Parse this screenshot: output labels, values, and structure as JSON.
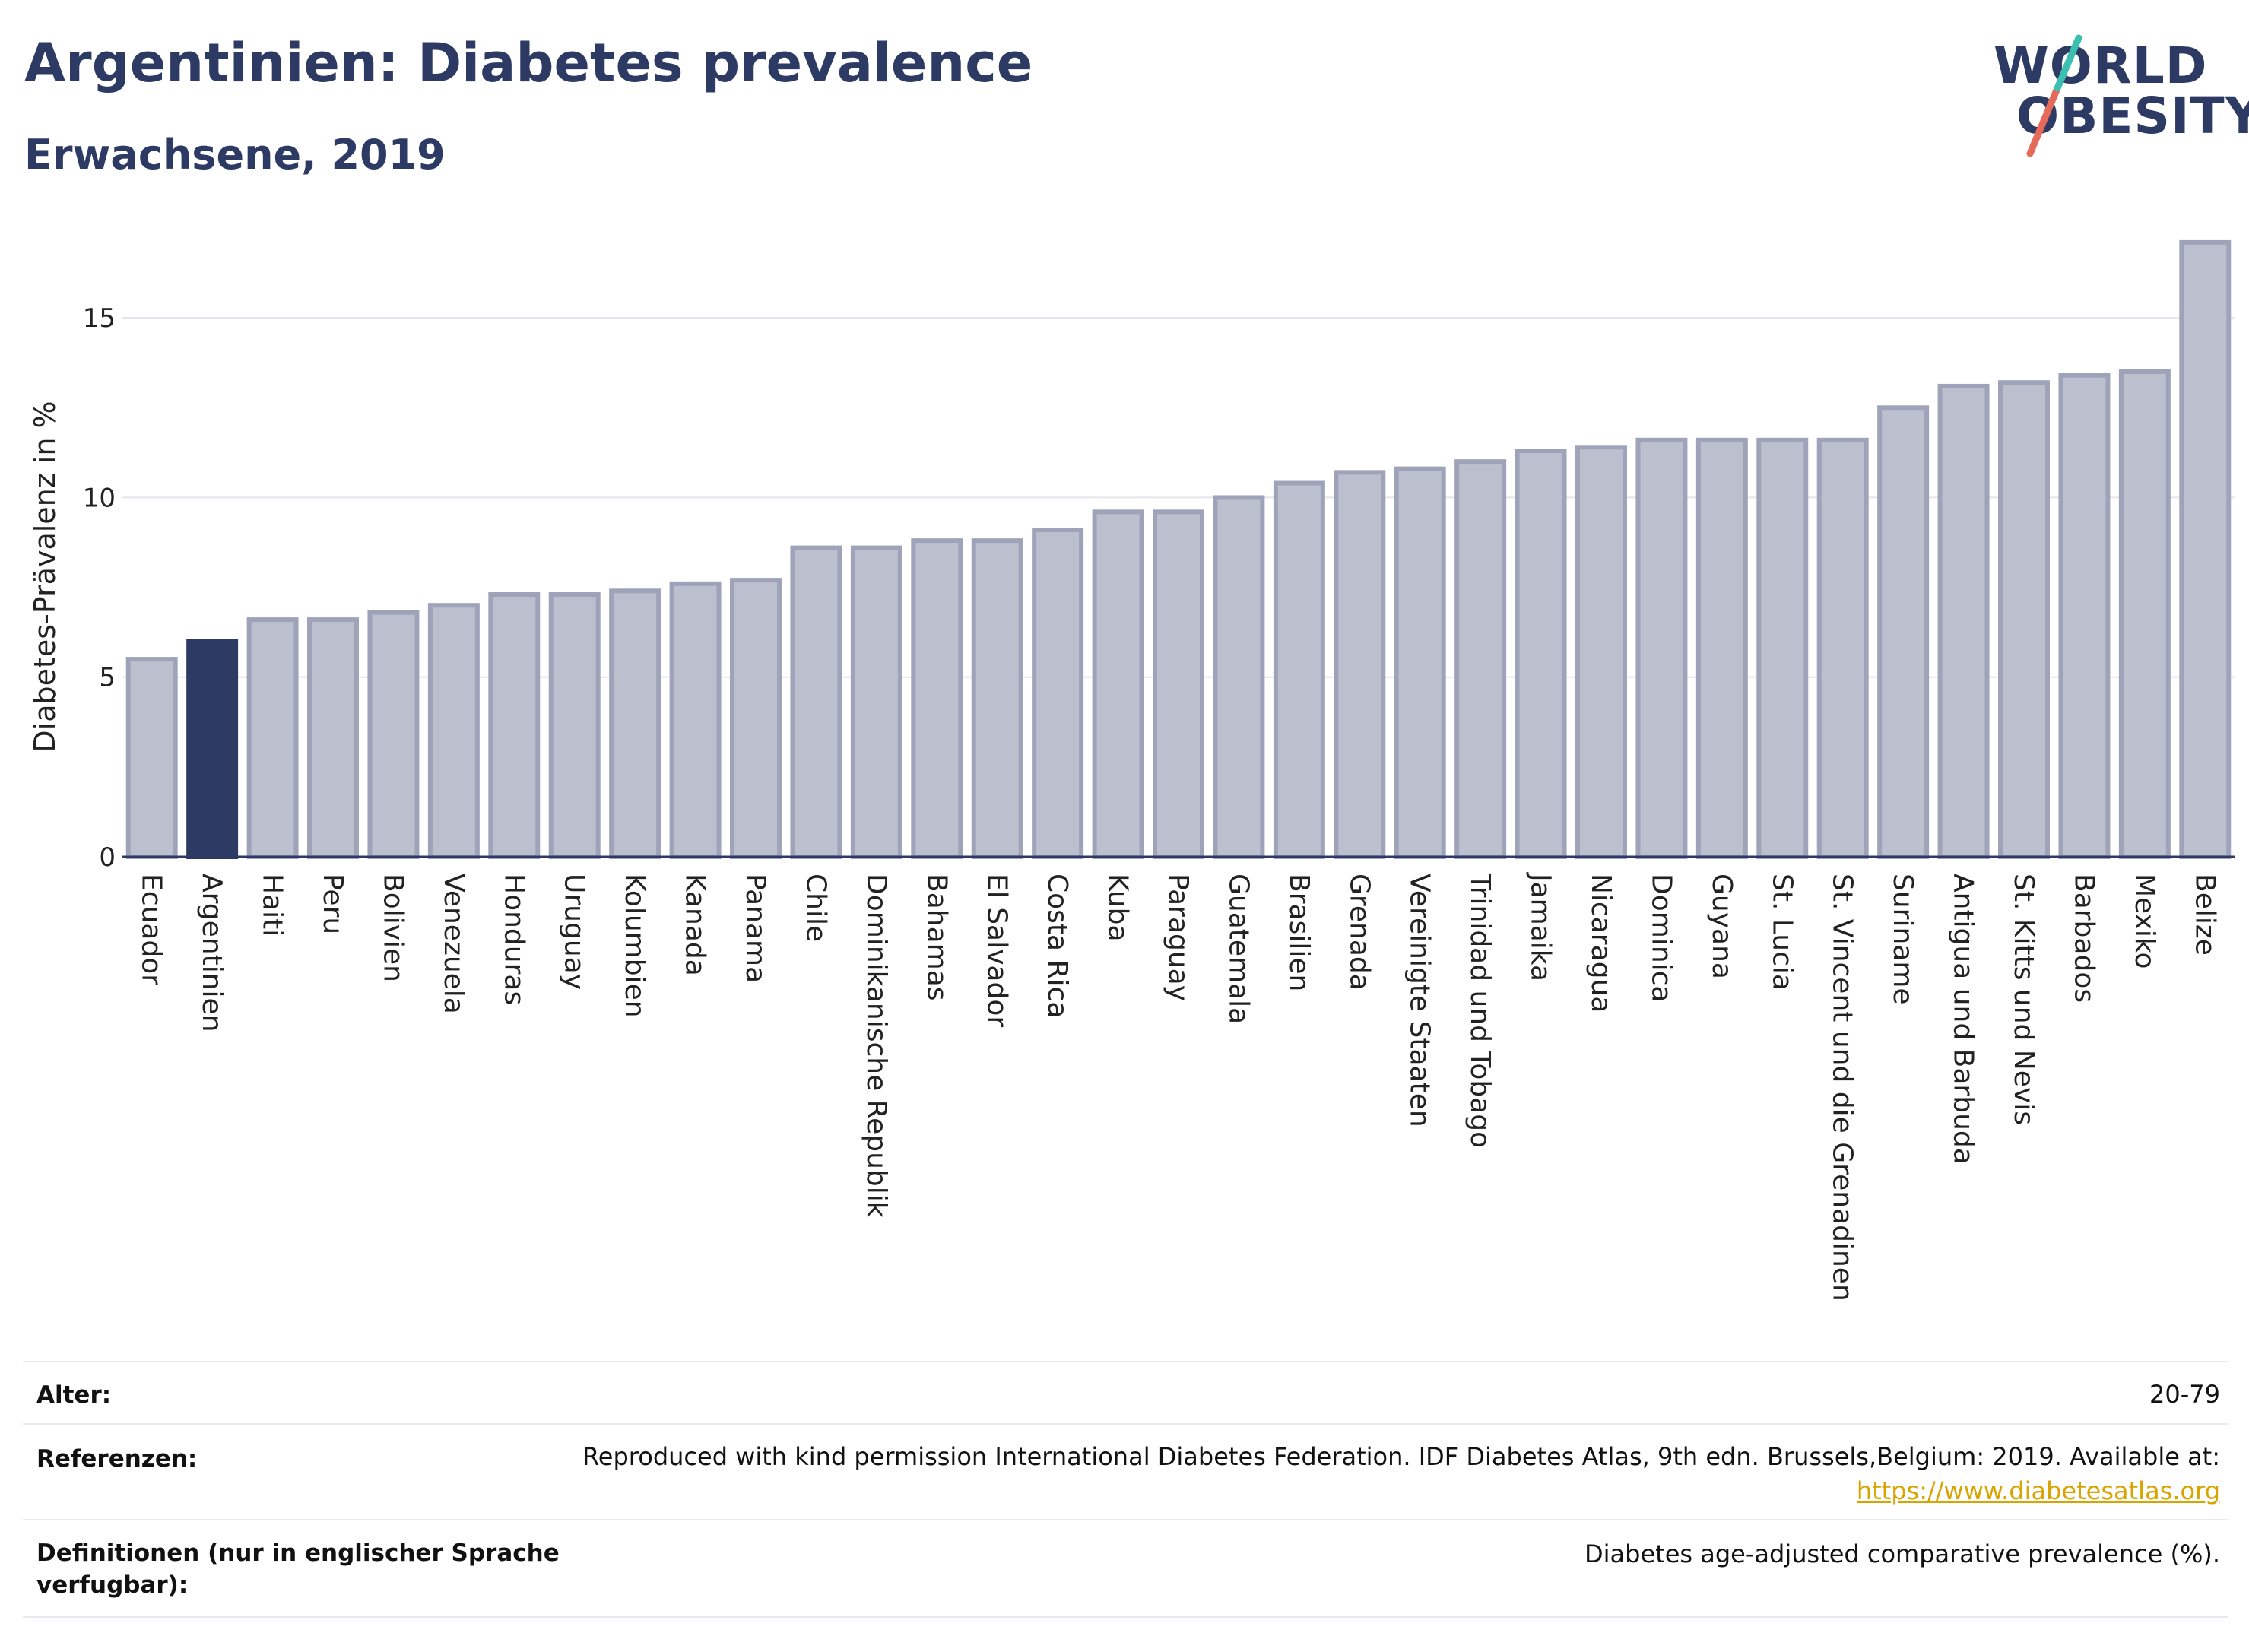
{
  "header": {
    "title": "Argentinien: Diabetes prevalence",
    "subtitle": "Erwachsene, 2019"
  },
  "logo": {
    "line1": "WORLD",
    "line2": "OBESITY",
    "slash_color_top": "#3bbfb0",
    "slash_color_bottom": "#e56a5a"
  },
  "colors": {
    "highlight_bar": "#2d3a64",
    "bar_fill": "#bcc0ce",
    "bar_stroke": "#9ea3b9",
    "axis_text": "#222222",
    "link": "#d9a400"
  },
  "chart_data": {
    "type": "bar",
    "ylabel": "Diabetes-Prävalenz in %",
    "ylim": [
      0,
      17.5
    ],
    "yticks": [
      0,
      5,
      10,
      15
    ],
    "grid": true,
    "highlight": "Argentinien",
    "categories": [
      "Ecuador",
      "Argentinien",
      "Haiti",
      "Peru",
      "Bolivien",
      "Venezuela",
      "Honduras",
      "Uruguay",
      "Kolumbien",
      "Kanada",
      "Panama",
      "Chile",
      "Dominikanische Republik",
      "Bahamas",
      "El Salvador",
      "Costa Rica",
      "Kuba",
      "Paraguay",
      "Guatemala",
      "Brasilien",
      "Grenada",
      "Vereinigte Staaten",
      "Trinidad und Tobago",
      "Jamaika",
      "Nicaragua",
      "Dominica",
      "Guyana",
      "St. Lucia",
      "St. Vincent und die Grenadinen",
      "Suriname",
      "Antigua und Barbuda",
      "St. Kitts und Nevis",
      "Barbados",
      "Mexiko",
      "Belize"
    ],
    "values": [
      5.5,
      6.0,
      6.6,
      6.6,
      6.8,
      7.0,
      7.3,
      7.3,
      7.4,
      7.6,
      7.7,
      8.6,
      8.6,
      8.8,
      8.8,
      9.1,
      9.6,
      9.6,
      10.0,
      10.4,
      10.7,
      10.8,
      11.0,
      11.3,
      11.4,
      11.6,
      11.6,
      11.6,
      11.6,
      12.5,
      13.1,
      13.2,
      13.4,
      13.5,
      17.1
    ]
  },
  "info_table": {
    "age_label": "Alter:",
    "age_value": "20-79",
    "ref_label": "Referenzen:",
    "ref_text": "Reproduced with kind permission International Diabetes Federation. IDF Diabetes Atlas, 9th edn. Brussels,Belgium: 2019. Available at:",
    "ref_link": "https://www.diabetesatlas.org",
    "def_label_1": "Definitionen (nur in englischer Sprache",
    "def_label_2": "verfugbar):",
    "def_text": "Diabetes age-adjusted comparative prevalence (%)."
  }
}
